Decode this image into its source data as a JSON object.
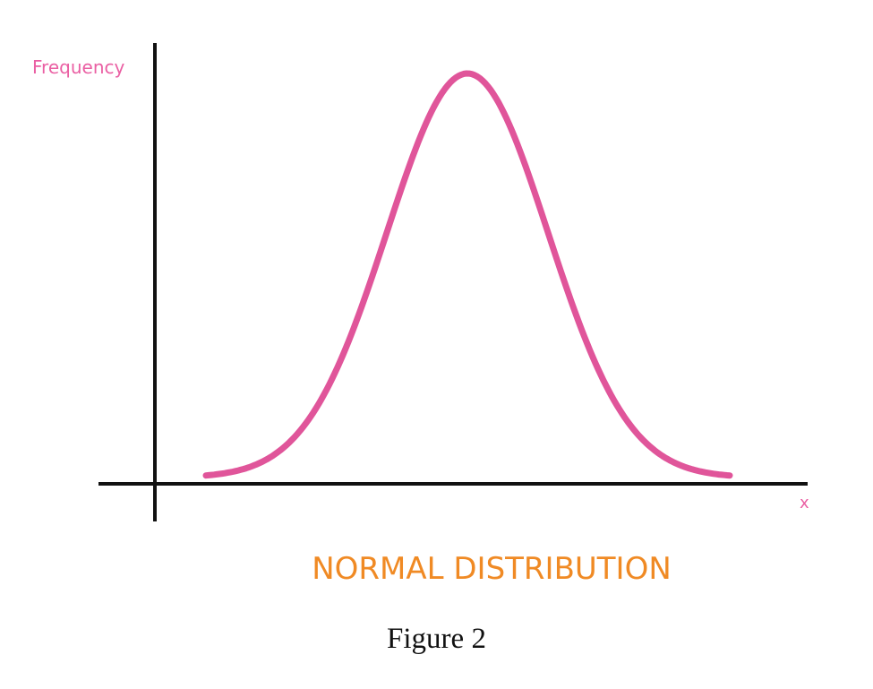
{
  "diagram": {
    "y_axis_label": "Frequency",
    "x_axis_label": "x",
    "title": "NORMAL DISTRIBUTION"
  },
  "caption": "Figure 2"
}
